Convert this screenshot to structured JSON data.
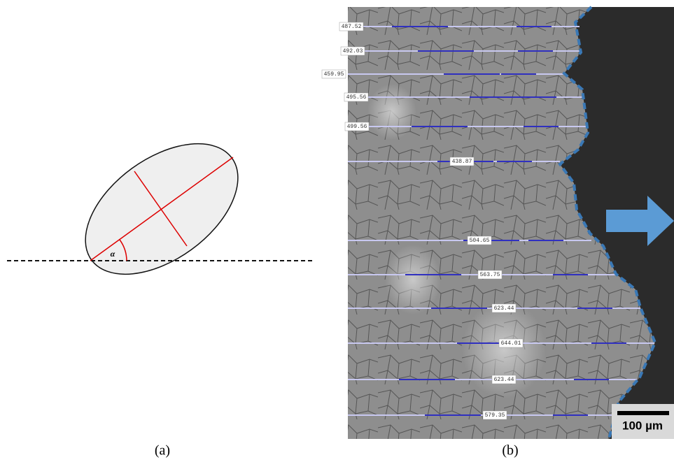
{
  "panel_a": {
    "angle_label": "α",
    "caption": "(a)"
  },
  "panel_b": {
    "measurements": [
      "487.52",
      "492.03",
      "459.95",
      "495.56",
      "499.56",
      "438.87",
      "504.65",
      "563.75",
      "623.44",
      "644.01",
      "623.44",
      "579.35"
    ],
    "scale_bar": "100 µm",
    "caption": "(b)"
  }
}
